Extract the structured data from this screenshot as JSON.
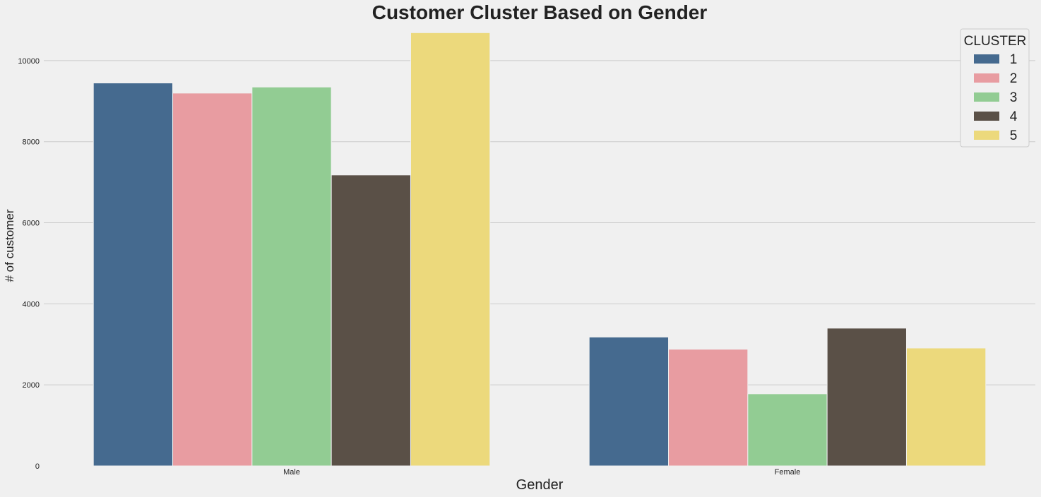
{
  "chart_data": {
    "type": "bar",
    "title": "Customer Cluster Based on Gender",
    "xlabel": "Gender",
    "ylabel": "# of customer",
    "categories": [
      "Male",
      "Female"
    ],
    "ylim": [
      0,
      10800
    ],
    "yticks": [
      0,
      2000,
      4000,
      6000,
      8000,
      10000
    ],
    "grid": true,
    "legend": {
      "title": "CLUSTER",
      "placement": "top-right"
    },
    "series": [
      {
        "name": "1",
        "color": "#456a8f",
        "values": [
          9450,
          3180
        ]
      },
      {
        "name": "2",
        "color": "#e89ca1",
        "values": [
          9200,
          2880
        ]
      },
      {
        "name": "3",
        "color": "#92cc93",
        "values": [
          9350,
          1780
        ]
      },
      {
        "name": "4",
        "color": "#5a5047",
        "values": [
          7180,
          3400
        ]
      },
      {
        "name": "5",
        "color": "#ecd97c",
        "values": [
          10690,
          2910
        ]
      }
    ]
  }
}
